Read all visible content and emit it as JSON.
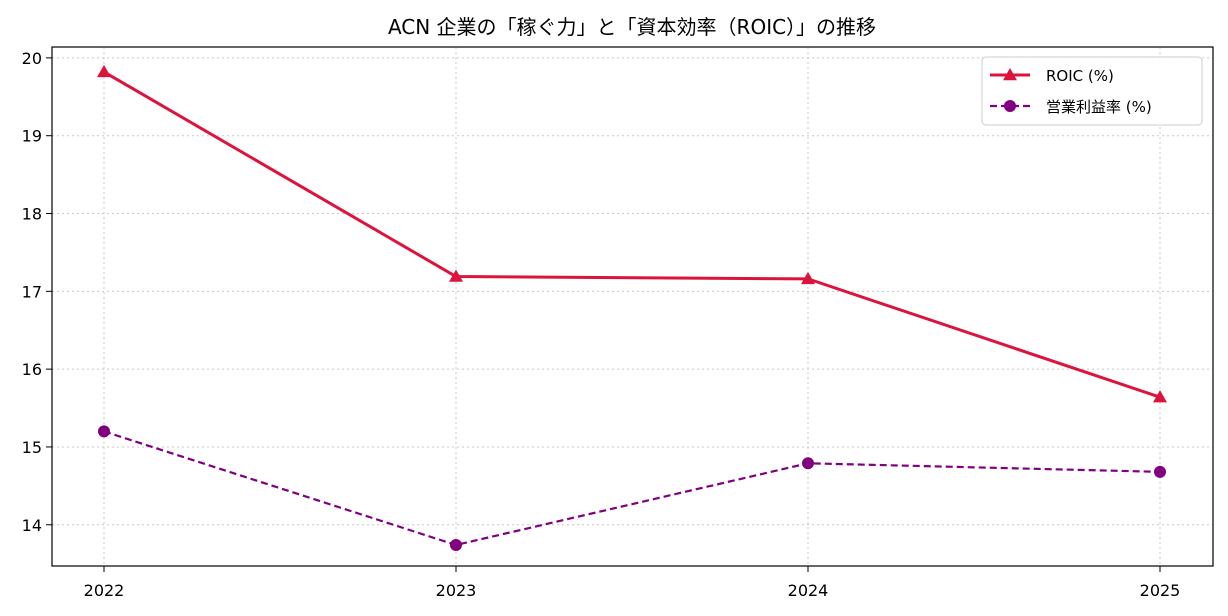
{
  "chart_data": {
    "type": "line",
    "title": "ACN 企業の「稼ぐ力」と「資本効率（ROIC）」の推移",
    "xlabel": "",
    "ylabel": "",
    "categories": [
      "2022",
      "2023",
      "2024",
      "2025"
    ],
    "ylim": [
      13.47,
      20.14
    ],
    "yticks": [
      14,
      15,
      16,
      17,
      18,
      19,
      20
    ],
    "grid": true,
    "legend_position": "top-right",
    "series": [
      {
        "name": "ROIC (%)",
        "values": [
          19.82,
          17.19,
          17.16,
          15.64
        ],
        "color": "#dc143c",
        "marker": "triangle",
        "linestyle": "solid"
      },
      {
        "name": "営業利益率 (%)",
        "values": [
          15.2,
          13.74,
          14.79,
          14.68
        ],
        "color": "#800080",
        "marker": "circle",
        "linestyle": "dashed"
      }
    ]
  }
}
